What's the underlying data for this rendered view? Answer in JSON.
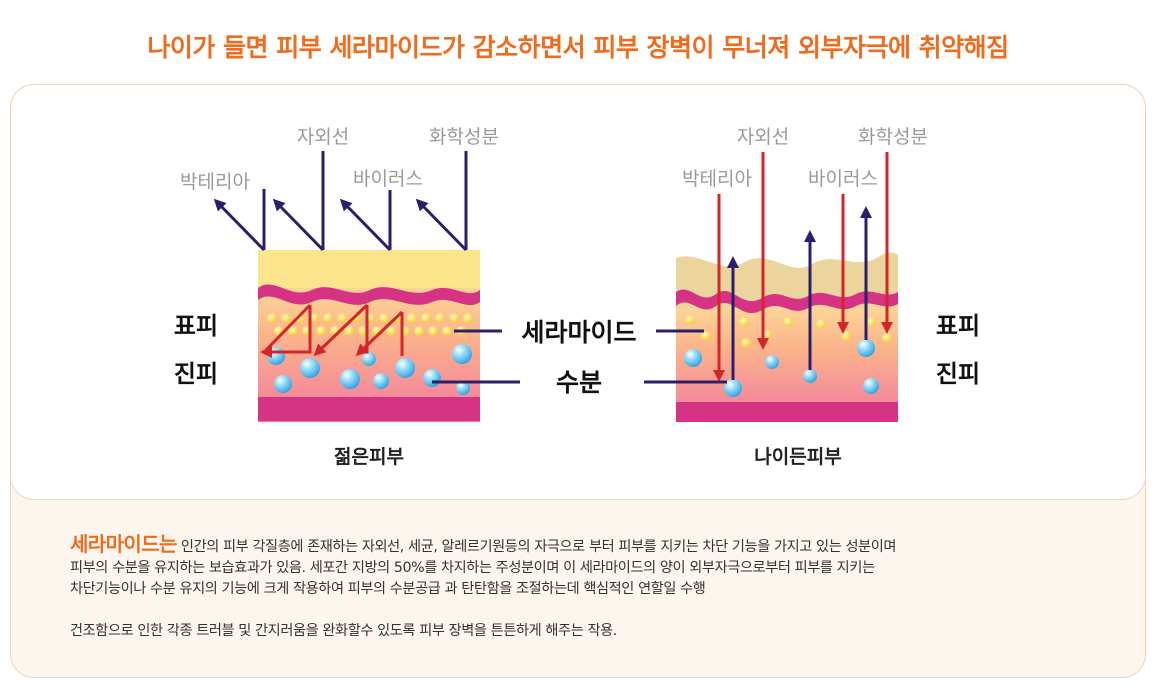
{
  "title": "나이가 들면 피부 세라마이드가 감소하면서 피부 장벽이 무너져 외부자극에 취약해짐",
  "colors": {
    "accent": "#ef6c1f",
    "stimulus_label": "#9a9a9a",
    "outward_arrow": "#2b1f6b",
    "inward_arrow": "#d4262a",
    "skin_magenta": "#d63384",
    "ceramide": "#f5d545",
    "moisture": "#4fb6ea"
  },
  "young_skin": {
    "stimuli": {
      "uv": "자외선",
      "chemical": "화학성분",
      "bacteria": "박테리아",
      "virus": "바이러스"
    },
    "caption": "젊은피부"
  },
  "aged_skin": {
    "stimuli": {
      "uv": "자외선",
      "chemical": "화학성분",
      "bacteria": "박테리아",
      "virus": "바이러스"
    },
    "caption": "나이든피부"
  },
  "layers": {
    "epidermis": "표피",
    "dermis": "진피"
  },
  "center_labels": {
    "ceramide": "세라마이드",
    "moisture": "수분"
  },
  "description": {
    "highlight": "세라마이드는",
    "line1": " 인간의 피부 각질층에 존재하는 자외선, 세균, 알레르기원등의 자극으로 부터 피부를 지키는 차단 기능을 가지고 있는 성분이며",
    "line2": "피부의 수분을 유지하는 보습효과가 있음.  세포간 지방의 50%를 차지하는 주성분이며 이 세라마이드의 양이 외부자극으로부터 피부를 지키는",
    "line3": "차단기능이나 수분 유지의 기능에 크게 작용하여 피부의 수분공급 과 탄탄함을 조절하는데 핵심적인 연할일 수행",
    "line4": "건조함으로 인한 각종 트러블 및 간지러움을 완화할수 있도록 피부 장벽을 튼튼하게 해주는 작용."
  }
}
